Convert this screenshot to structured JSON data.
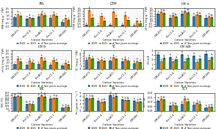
{
  "chart_data": [
    {
      "type": "bar",
      "title": "IPA",
      "xlabel": "Cotton Varieties",
      "ylabel": "IPA (mg g⁻¹ FW)",
      "categories": [
        "CIM-473",
        "Ftn-C1-4",
        "Ftn-AC1",
        "Ftn-C1-1",
        "CIM-446"
      ],
      "series": [
        {
          "name": "2020",
          "values": [
            1.3,
            1.05,
            1.35,
            1.2,
            0.65
          ],
          "errors": [
            0.065,
            0.0525,
            0.0675,
            0.06,
            0.0325
          ],
          "annotations": [
            "a",
            "a",
            "a",
            "a",
            "a"
          ]
        },
        {
          "name": "2021",
          "values": [
            1.7,
            1.25,
            1.75,
            1.65,
            1.15
          ],
          "errors": [
            0.085,
            0.0625,
            0.0875,
            0.0825,
            0.0575
          ],
          "annotations": [
            "b",
            "b",
            "b",
            "b",
            "b"
          ]
        },
        {
          "name": "# Two years average",
          "values": [
            1.5,
            1.15,
            1.55,
            1.42,
            0.9
          ],
          "errors": [
            0.075,
            0.0575,
            0.0775,
            0.071,
            0.045
          ],
          "annotations": [
            "c",
            "c",
            "c",
            "c",
            "c"
          ]
        }
      ],
      "ylim": [
        0,
        2.5
      ],
      "yticks": [
        0.0,
        0.5,
        1.0,
        1.5,
        2.0,
        2.5
      ],
      "grid": true,
      "legend": "upper center"
    },
    {
      "type": "bar",
      "title": "CTM",
      "xlabel": "Cotton Varieties",
      "ylabel": "CTM (mg g⁻¹ FW)",
      "categories": [
        "CIM-473",
        "Ftn-C1-4",
        "Ftn-AC1",
        "Ftn-C1-1",
        "CIM-446"
      ],
      "series": [
        {
          "name": "2020",
          "values": [
            0.25,
            0.22,
            0.28,
            0.25,
            0.15
          ],
          "errors": [
            0.0125,
            0.011,
            0.014,
            0.0125,
            0.0075
          ],
          "annotations": [
            "c",
            "c",
            "c",
            "c",
            "c"
          ]
        },
        {
          "name": "2021",
          "values": [
            3.1,
            2.0,
            2.9,
            2.2,
            1.1
          ],
          "errors": [
            0.155,
            0.1,
            0.145,
            0.11,
            0.055
          ],
          "annotations": [
            "a",
            "a",
            "a",
            "a",
            "a"
          ]
        },
        {
          "name": "# Two years average",
          "values": [
            1.7,
            1.1,
            1.6,
            1.2,
            0.62
          ],
          "errors": [
            0.085,
            0.055,
            0.08,
            0.06,
            0.031
          ],
          "annotations": [
            "b",
            "b",
            "b",
            "b",
            "b"
          ]
        }
      ],
      "ylim": [
        0,
        3.5
      ],
      "yticks": [
        0.0,
        0.5,
        1.0,
        1.5,
        2.0,
        2.5,
        3.0,
        3.5
      ],
      "grid": true,
      "legend": "upper center"
    },
    {
      "type": "bar",
      "title": "chl a",
      "xlabel": "Cotton Varieties",
      "ylabel": "chl a (mg g⁻¹ FW)",
      "categories": [
        "CIM-473",
        "Ftn-C1-4",
        "Ftn-AC1",
        "Ftn-C1-1",
        "CIM-446"
      ],
      "series": [
        {
          "name": "2020",
          "values": [
            2.4,
            1.65,
            2.45,
            1.95,
            1.65
          ],
          "errors": [
            0.12,
            0.0825,
            0.1225,
            0.0975,
            0.0825
          ],
          "annotations": [
            "b",
            "b",
            "b",
            "b",
            "b"
          ]
        },
        {
          "name": "2021",
          "values": [
            2.8,
            2.15,
            3.0,
            2.3,
            1.95
          ],
          "errors": [
            0.14,
            0.1075,
            0.15,
            0.115,
            0.0975
          ],
          "annotations": [
            "a",
            "a",
            "a",
            "a",
            "a"
          ]
        },
        {
          "name": "# Two years average",
          "values": [
            2.6,
            1.9,
            2.72,
            2.12,
            1.8
          ],
          "errors": [
            0.13,
            0.095,
            0.136,
            0.106,
            0.09
          ],
          "annotations": [
            "ab",
            "ab",
            "ab",
            "ab",
            "ab"
          ]
        }
      ],
      "ylim": [
        0,
        3.5
      ],
      "yticks": [
        0.0,
        0.5,
        1.0,
        1.5,
        2.0,
        2.5,
        3.0,
        3.5
      ],
      "grid": true,
      "legend": "upper center"
    },
    {
      "type": "bar",
      "title": "chl b",
      "xlabel": "Cotton Varieties",
      "ylabel": "chl b (mg g⁻¹ FW)",
      "categories": [
        "CIM-473",
        "Ftn-C1-4",
        "Ftn-AC1",
        "Ftn-C1-1",
        "CIM-446"
      ],
      "series": [
        {
          "name": "2020",
          "values": [
            0.75,
            0.65,
            0.78,
            0.68,
            0.48
          ],
          "errors": [
            0.0375,
            0.0325,
            0.039,
            0.034,
            0.024
          ],
          "annotations": [
            "c",
            "c",
            "c",
            "c",
            "c"
          ]
        },
        {
          "name": "2021",
          "values": [
            1.65,
            1.35,
            1.85,
            1.45,
            0.95
          ],
          "errors": [
            0.0825,
            0.0675,
            0.0925,
            0.0725,
            0.0475
          ],
          "annotations": [
            "a",
            "a",
            "a",
            "a",
            "a"
          ]
        },
        {
          "name": "# Two years average",
          "values": [
            1.2,
            1.0,
            1.32,
            1.06,
            0.72
          ],
          "errors": [
            0.06,
            0.05,
            0.066,
            0.053,
            0.036
          ],
          "annotations": [
            "b",
            "b",
            "b",
            "b",
            "b"
          ]
        }
      ],
      "ylim": [
        0,
        3.0
      ],
      "yticks": [
        0.0,
        0.5,
        1.0,
        1.5,
        2.0,
        2.5,
        3.0
      ],
      "grid": true,
      "legend": "upper center"
    },
    {
      "type": "bar",
      "title": "TC",
      "xlabel": "Cotton Varieties",
      "ylabel": "TC (mg g⁻¹ FW)",
      "categories": [
        "CIM-473",
        "Ftn-C1-4",
        "Ftn-AC1",
        "Ftn-C1-1",
        "CIM-446"
      ],
      "series": [
        {
          "name": "2020",
          "values": [
            3.4,
            2.7,
            3.2,
            2.75,
            2.1
          ],
          "errors": [
            0.17,
            0.135,
            0.16,
            0.1375,
            0.105
          ],
          "annotations": [
            "b",
            "b",
            "b",
            "b",
            "b"
          ]
        },
        {
          "name": "2021",
          "values": [
            4.45,
            3.45,
            4.45,
            3.65,
            2.95
          ],
          "errors": [
            0.2225,
            0.1725,
            0.2225,
            0.1825,
            0.1475
          ],
          "annotations": [
            "a",
            "a",
            "a",
            "a",
            "a"
          ]
        },
        {
          "name": "# Two years average",
          "values": [
            3.92,
            3.07,
            3.82,
            3.2,
            2.52
          ],
          "errors": [
            0.196,
            0.1535,
            0.191,
            0.16,
            0.126
          ],
          "annotations": [
            "c",
            "c",
            "c",
            "c",
            "c"
          ]
        }
      ],
      "ylim": [
        0,
        7
      ],
      "yticks": [
        0,
        1,
        2,
        3,
        4,
        5,
        6,
        7
      ],
      "grid": true,
      "legend": "upper center"
    },
    {
      "type": "bar",
      "title": "chl a/b",
      "xlabel": "Cotton Varieties",
      "ylabel": "chl a/b",
      "categories": [
        "CIM-473",
        "Ftn-C1-4",
        "Ftn-AC1",
        "Ftn-C1-1",
        "CIM-446"
      ],
      "series": [
        {
          "name": "2020",
          "values": [
            3.1,
            2.55,
            3.15,
            2.85,
            3.25
          ],
          "errors": [
            0.155,
            0.1275,
            0.1575,
            0.1425,
            0.1625
          ],
          "annotations": [
            "a",
            "a",
            "a",
            "a",
            "a"
          ]
        },
        {
          "name": "2021",
          "values": [
            1.65,
            1.55,
            1.6,
            1.5,
            1.85
          ],
          "errors": [
            0.0825,
            0.0775,
            0.08,
            0.075,
            0.0925
          ],
          "annotations": [
            "c",
            "c",
            "c",
            "c",
            "c"
          ]
        },
        {
          "name": "# Two years average",
          "values": [
            2.38,
            2.05,
            2.38,
            2.18,
            2.55
          ],
          "errors": [
            0.119,
            0.1025,
            0.119,
            0.109,
            0.1275
          ],
          "annotations": [
            "b",
            "b",
            "b",
            "b",
            "b"
          ]
        }
      ],
      "ylim": [
        0,
        4
      ],
      "yticks": [
        0,
        1,
        2,
        3,
        4
      ],
      "grid": true,
      "legend": "upper center"
    },
    {
      "type": "bar",
      "title": "WC",
      "xlabel": "Cotton Varieties",
      "ylabel": "WC (%)",
      "categories": [
        "CIM-473",
        "Ftn-C1-4",
        "Ftn-AC1",
        "Ftn-C1-1",
        "CIM-446"
      ],
      "series": [
        {
          "name": "2020",
          "values": [
            275,
            125,
            265,
            235,
            65
          ],
          "errors": [
            13.75,
            6.25,
            13.25,
            11.75,
            3.25
          ],
          "annotations": [
            "ab",
            "ab",
            "b",
            "b",
            "b"
          ]
        },
        {
          "name": "2021",
          "values": [
            290,
            140,
            305,
            255,
            82
          ],
          "errors": [
            14.5,
            7,
            15.25,
            12.75,
            4.1
          ],
          "annotations": [
            "a",
            "a",
            "a",
            "a",
            "a"
          ]
        },
        {
          "name": "# Two years average",
          "values": [
            282,
            132,
            285,
            245,
            73
          ],
          "errors": [
            14.1,
            6.6,
            14.25,
            12.25,
            3.65
          ],
          "annotations": [
            "ab",
            "b",
            "ab",
            "ab",
            "ab"
          ]
        }
      ],
      "ylim": [
        0,
        350
      ],
      "yticks": [
        0,
        50,
        100,
        150,
        200,
        250,
        300,
        350
      ],
      "grid": true,
      "legend": "upper center"
    },
    {
      "type": "bar",
      "title": "Pn",
      "xlabel": "Cotton Varieties",
      "ylabel": "Pn (µmol m⁻² s⁻¹)",
      "categories": [
        "CIM-473",
        "Ftn-C1-4",
        "Ftn-AC1",
        "Ftn-C1-1",
        "CIM-446"
      ],
      "series": [
        {
          "name": "2020",
          "values": [
            3.65,
            2.75,
            4.45,
            3.15,
            2.75
          ],
          "errors": [
            0.1825,
            0.1375,
            0.2225,
            0.1575,
            0.1375
          ],
          "annotations": [
            "a",
            "a",
            "a",
            "a",
            "a"
          ]
        },
        {
          "name": "2021",
          "values": [
            3.45,
            2.45,
            3.75,
            2.95,
            2.45
          ],
          "errors": [
            0.1725,
            0.1225,
            0.1875,
            0.1475,
            0.1225
          ],
          "annotations": [
            "b",
            "b",
            "b",
            "b",
            "b"
          ]
        },
        {
          "name": "# Two years average",
          "values": [
            3.55,
            2.6,
            4.1,
            3.05,
            2.6
          ],
          "errors": [
            0.1775,
            0.13,
            0.205,
            0.1525,
            0.13
          ],
          "annotations": [
            "ab",
            "ab",
            "ab",
            "ab",
            "ab"
          ]
        }
      ],
      "ylim": [
        0,
        5
      ],
      "yticks": [
        0,
        1,
        2,
        3,
        4,
        5
      ],
      "grid": true,
      "legend": "upper center"
    },
    {
      "type": "bar",
      "title": "SCY",
      "xlabel": "Cotton Varieties",
      "ylabel": "SCY (g)",
      "categories": [
        "CIM-473",
        "Ftn-C1-4",
        "Ftn-AC1",
        "Ftn-C1-1",
        "CIM-446"
      ],
      "series": [
        {
          "name": "2020",
          "values": [
            0.115,
            0.058,
            0.078,
            0.068,
            0.038
          ],
          "errors": [
            0.00575,
            0.0029,
            0.0039,
            0.0034,
            0.0019
          ],
          "annotations": [
            "b",
            "b",
            "b",
            "b",
            "b"
          ]
        },
        {
          "name": "2021",
          "values": [
            0.135,
            0.068,
            0.135,
            0.088,
            0.048
          ],
          "errors": [
            0.00675,
            0.0034,
            0.00675,
            0.0044,
            0.0024
          ],
          "annotations": [
            "a",
            "a",
            "a",
            "a",
            "a"
          ]
        },
        {
          "name": "# Two years average",
          "values": [
            0.125,
            0.063,
            0.107,
            0.078,
            0.043
          ],
          "errors": [
            0.00625,
            0.00315,
            0.00535,
            0.0039,
            0.00215
          ],
          "annotations": [
            "ab",
            "ab",
            "ab",
            "ab",
            "ab"
          ]
        }
      ],
      "ylim": [
        0,
        0.2
      ],
      "yticks": [
        {
          "value": 0.0,
          "label": "0.00"
        },
        {
          "value": 0.05,
          "label": "0.05"
        },
        {
          "value": 0.1,
          "label": "0.10"
        },
        {
          "value": 0.15,
          "label": "0.15"
        },
        {
          "value": 0.2,
          "label": "0.20"
        }
      ],
      "grid": true,
      "legend": "upper center"
    }
  ]
}
